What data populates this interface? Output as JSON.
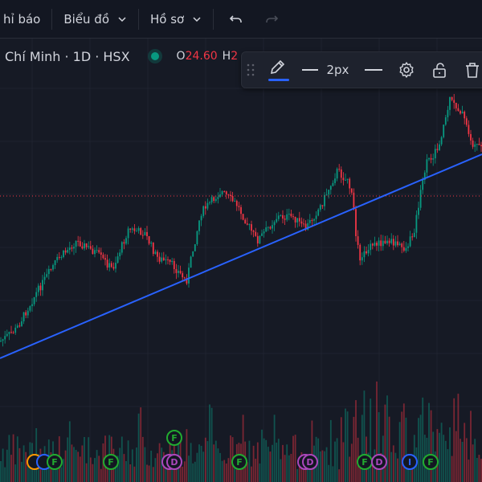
{
  "topbar": {
    "indicators_label": "hỉ báo",
    "charts_label": "Biểu đồ",
    "profile_label": "Hồ sơ"
  },
  "legend": {
    "symbol_title": "Chí Minh · 1D · HSX",
    "open_key": "O",
    "open_value": "24.60",
    "high_key": "H",
    "high_value_partial": "2"
  },
  "drawing_toolbar": {
    "line_width_label": "2px"
  },
  "markers": [
    {
      "letter": "F",
      "type": "f"
    },
    {
      "letter": "F",
      "type": "f"
    },
    {
      "letter": "F",
      "type": "f"
    },
    {
      "letter": "F",
      "type": "f"
    },
    {
      "letter": "D",
      "type": "d"
    },
    {
      "letter": "F",
      "type": "f"
    },
    {
      "letter": "D",
      "type": "d"
    },
    {
      "letter": "F",
      "type": "f"
    },
    {
      "letter": "D",
      "type": "d"
    },
    {
      "letter": "I",
      "type": "i"
    },
    {
      "letter": "F",
      "type": "f"
    }
  ],
  "colors": {
    "background": "#161a25",
    "up": "#089981",
    "down": "#f23645",
    "trendline": "#2962ff",
    "price_line": "#f23645",
    "accent": "#2962ff"
  },
  "chart_data": {
    "type": "candlestick",
    "trendline": true,
    "price_line": true,
    "grid": true
  }
}
